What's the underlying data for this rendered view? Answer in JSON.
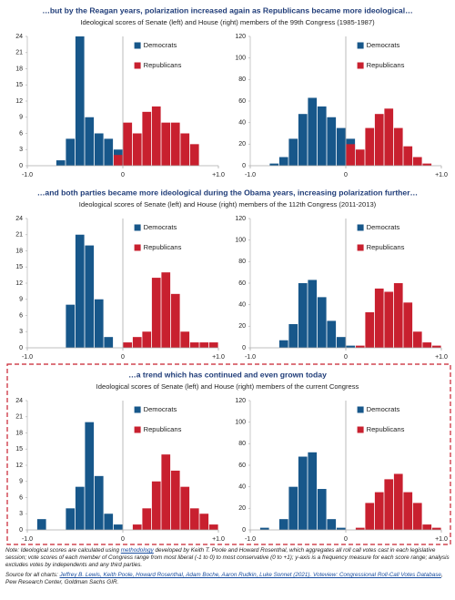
{
  "sections": [
    {
      "title": "…but by the Reagan years, polarization increased again as Republicans became more ideological…",
      "subtitle": "Ideological scores of Senate (left) and House (right) members of the 99th Congress (1985-1987)"
    },
    {
      "title": "…and both parties became more ideological during the Obama years, increasing polarization further…",
      "subtitle": "Ideological scores of Senate (left) and House (right) members of the 112th Congress (2011-2013)"
    },
    {
      "title": "…a trend which has continued and even grown today",
      "subtitle": "Ideological scores of Senate (left) and House (right) members of the current Congress"
    }
  ],
  "chart_data": [
    {
      "type": "histogram",
      "bins": [
        -1,
        -0.9,
        -0.8,
        -0.7,
        -0.6,
        -0.5,
        -0.4,
        -0.3,
        -0.2,
        -0.1,
        0,
        0.1,
        0.2,
        0.3,
        0.4,
        0.5,
        0.6,
        0.7,
        0.8,
        0.9,
        1
      ],
      "series": [
        {
          "name": "Democrats",
          "color": "#17578a",
          "values": [
            0,
            0,
            0,
            1,
            5,
            24,
            9,
            6,
            5,
            3,
            0,
            0,
            0,
            0,
            0,
            0,
            0,
            0,
            0,
            0
          ]
        },
        {
          "name": "Republicans",
          "color": "#c8202f",
          "values": [
            0,
            0,
            0,
            0,
            0,
            0,
            0,
            0,
            0,
            2,
            8,
            6,
            10,
            11,
            8,
            8,
            6,
            4,
            0,
            0
          ]
        }
      ],
      "xlim": [
        -1,
        1
      ],
      "xticks": [
        {
          "value": -1,
          "label": "-1.0"
        },
        0,
        {
          "value": 1,
          "label": "+1.0"
        }
      ],
      "ylim": [
        0,
        24
      ],
      "yticks": [
        0,
        3,
        6,
        9,
        12,
        15,
        18,
        21,
        24
      ]
    },
    {
      "type": "histogram",
      "bins": [
        -1,
        -0.9,
        -0.8,
        -0.7,
        -0.6,
        -0.5,
        -0.4,
        -0.3,
        -0.2,
        -0.1,
        0,
        0.1,
        0.2,
        0.3,
        0.4,
        0.5,
        0.6,
        0.7,
        0.8,
        0.9,
        1
      ],
      "series": [
        {
          "name": "Democrats",
          "color": "#17578a",
          "values": [
            0,
            0,
            2,
            8,
            25,
            48,
            63,
            55,
            45,
            35,
            25,
            0,
            0,
            0,
            0,
            0,
            0,
            0,
            0,
            0
          ]
        },
        {
          "name": "Republicans",
          "color": "#c8202f",
          "values": [
            0,
            0,
            0,
            0,
            0,
            0,
            0,
            0,
            0,
            0,
            20,
            15,
            35,
            48,
            53,
            35,
            18,
            8,
            2,
            0
          ]
        }
      ],
      "xlim": [
        -1,
        1
      ],
      "xticks": [
        {
          "value": -1,
          "label": "-1.0"
        },
        0,
        {
          "value": 1,
          "label": "+1.0"
        }
      ],
      "ylim": [
        0,
        120
      ],
      "yticks": [
        0,
        20,
        40,
        60,
        80,
        100,
        120
      ]
    },
    {
      "type": "histogram",
      "bins": [
        -1,
        -0.9,
        -0.8,
        -0.7,
        -0.6,
        -0.5,
        -0.4,
        -0.3,
        -0.2,
        -0.1,
        0,
        0.1,
        0.2,
        0.3,
        0.4,
        0.5,
        0.6,
        0.7,
        0.8,
        0.9,
        1
      ],
      "series": [
        {
          "name": "Democrats",
          "color": "#17578a",
          "values": [
            0,
            0,
            0,
            0,
            8,
            21,
            19,
            9,
            2,
            0,
            0,
            0,
            0,
            0,
            0,
            0,
            0,
            0,
            0,
            0
          ]
        },
        {
          "name": "Republicans",
          "color": "#c8202f",
          "values": [
            0,
            0,
            0,
            0,
            0,
            0,
            0,
            0,
            0,
            0,
            1,
            2,
            3,
            13,
            14,
            10,
            3,
            1,
            1,
            1
          ]
        }
      ],
      "xlim": [
        -1,
        1
      ],
      "xticks": [
        {
          "value": -1,
          "label": "-1.0"
        },
        0,
        {
          "value": 1,
          "label": "+1.0"
        }
      ],
      "ylim": [
        0,
        24
      ],
      "yticks": [
        0,
        3,
        6,
        9,
        12,
        15,
        18,
        21,
        24
      ]
    },
    {
      "type": "histogram",
      "bins": [
        -1,
        -0.9,
        -0.8,
        -0.7,
        -0.6,
        -0.5,
        -0.4,
        -0.3,
        -0.2,
        -0.1,
        0,
        0.1,
        0.2,
        0.3,
        0.4,
        0.5,
        0.6,
        0.7,
        0.8,
        0.9,
        1
      ],
      "series": [
        {
          "name": "Democrats",
          "color": "#17578a",
          "values": [
            0,
            0,
            0,
            7,
            22,
            60,
            63,
            47,
            25,
            10,
            2,
            0,
            0,
            0,
            0,
            0,
            0,
            0,
            0,
            0
          ]
        },
        {
          "name": "Republicans",
          "color": "#c8202f",
          "values": [
            0,
            0,
            0,
            0,
            0,
            0,
            0,
            0,
            0,
            0,
            0,
            2,
            33,
            55,
            52,
            60,
            42,
            15,
            5,
            2
          ]
        }
      ],
      "xlim": [
        -1,
        1
      ],
      "xticks": [
        {
          "value": -1,
          "label": "-1.0"
        },
        0,
        {
          "value": 1,
          "label": "+1.0"
        }
      ],
      "ylim": [
        0,
        120
      ],
      "yticks": [
        0,
        20,
        40,
        60,
        80,
        100,
        120
      ]
    },
    {
      "type": "histogram",
      "bins": [
        -1,
        -0.9,
        -0.8,
        -0.7,
        -0.6,
        -0.5,
        -0.4,
        -0.3,
        -0.2,
        -0.1,
        0,
        0.1,
        0.2,
        0.3,
        0.4,
        0.5,
        0.6,
        0.7,
        0.8,
        0.9,
        1
      ],
      "series": [
        {
          "name": "Democrats",
          "color": "#17578a",
          "values": [
            0,
            2,
            0,
            0,
            4,
            8,
            20,
            10,
            3,
            1,
            0,
            0,
            0,
            0,
            0,
            0,
            0,
            0,
            0,
            0
          ]
        },
        {
          "name": "Republicans",
          "color": "#c8202f",
          "values": [
            0,
            0,
            0,
            0,
            0,
            0,
            0,
            0,
            0,
            0,
            0,
            1,
            4,
            9,
            14,
            11,
            8,
            4,
            3,
            1
          ]
        }
      ],
      "xlim": [
        -1,
        1
      ],
      "xticks": [
        {
          "value": -1,
          "label": "-1.0"
        },
        0,
        {
          "value": 1,
          "label": "+1.0"
        }
      ],
      "ylim": [
        0,
        24
      ],
      "yticks": [
        0,
        3,
        6,
        9,
        12,
        15,
        18,
        21,
        24
      ]
    },
    {
      "type": "histogram",
      "bins": [
        -1,
        -0.9,
        -0.8,
        -0.7,
        -0.6,
        -0.5,
        -0.4,
        -0.3,
        -0.2,
        -0.1,
        0,
        0.1,
        0.2,
        0.3,
        0.4,
        0.5,
        0.6,
        0.7,
        0.8,
        0.9,
        1
      ],
      "series": [
        {
          "name": "Democrats",
          "color": "#17578a",
          "values": [
            0,
            2,
            0,
            10,
            40,
            68,
            72,
            38,
            10,
            2,
            0,
            0,
            0,
            0,
            0,
            0,
            0,
            0,
            0,
            0
          ]
        },
        {
          "name": "Republicans",
          "color": "#c8202f",
          "values": [
            0,
            0,
            0,
            0,
            0,
            0,
            0,
            0,
            0,
            0,
            0,
            2,
            25,
            35,
            47,
            52,
            35,
            25,
            5,
            2
          ]
        }
      ],
      "xlim": [
        -1,
        1
      ],
      "xticks": [
        {
          "value": -1,
          "label": "-1.0"
        },
        0,
        {
          "value": 1,
          "label": "+1.0"
        }
      ],
      "ylim": [
        0,
        120
      ],
      "yticks": [
        0,
        20,
        40,
        60,
        80,
        100,
        120
      ]
    }
  ],
  "notes": {
    "note_before": "Note: Ideological scores are calculated using ",
    "note_link": "methodology",
    "note_after": " developed by Keith T. Poole and Howard Rosenthal, which aggregates all roll call votes cast in each legislative session; vote scores of each member of Congress range from most liberal (-1 to 0) to most conservative (0 to +1); y-axis is a frequency measure for each score range; analysis excludes votes by independents and any third parties.",
    "source_before": "Source for all charts: ",
    "source_link": "Jeffrey B. Lewis, Keith Poole, Howard Rosenthal, Adam Boche, Aaron Rudkin, Luke Sonnet (2021). Voteview: Congressional Roll-Call Votes Database",
    "source_after": ", Pew Research Center, Goldman Sachs GIR."
  }
}
